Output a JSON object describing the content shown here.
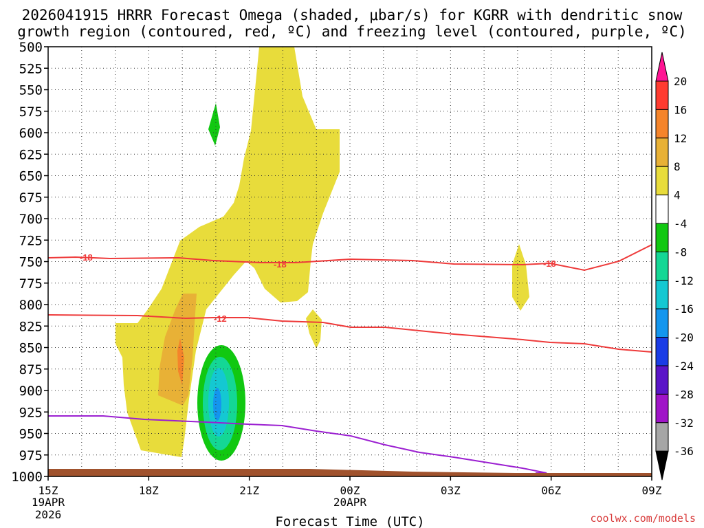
{
  "chart_data": {
    "type": "contour",
    "title_line1": "2026041915 HRRR Forecast Omega (shaded, μbar/s) for KGRR with dendritic snow",
    "title_line2": "growth region (contoured, red, ºC) and freezing level (contoured, purple, ºC)",
    "xlabel": "Forecast Time (UTC)",
    "x_ticks": [
      "15Z",
      "18Z",
      "21Z",
      "00Z",
      "03Z",
      "06Z",
      "09Z"
    ],
    "x_tick_hours": [
      0,
      3,
      6,
      9,
      12,
      15,
      18
    ],
    "x_date_labels": [
      {
        "hour": 0,
        "lines": [
          "19APR",
          "2026"
        ]
      },
      {
        "hour": 9,
        "lines": [
          "20APR"
        ]
      }
    ],
    "y_ticks": [
      500,
      525,
      550,
      575,
      600,
      625,
      650,
      675,
      700,
      725,
      750,
      775,
      800,
      825,
      850,
      875,
      900,
      925,
      950,
      975,
      1000
    ],
    "ylim": [
      500,
      1000
    ],
    "xlim": [
      0,
      18
    ],
    "colorbar": {
      "levels": [
        "20",
        "16",
        "12",
        "8",
        "4",
        "-4",
        "-8",
        "-12",
        "-16",
        "-20",
        "-24",
        "-28",
        "-32",
        "-36"
      ],
      "colors": [
        "#ff1493",
        "#ff3b30",
        "#f5842a",
        "#e8b136",
        "#e8dc3b",
        "#ffffff",
        "#11c811",
        "#14d795",
        "#14c8d2",
        "#1496ee",
        "#1a3ce6",
        "#5a14c8",
        "#a014c8",
        "#a6a6a6",
        "#000000"
      ]
    },
    "contour_labels": [
      {
        "text": "-18",
        "color": "#ee3a3a"
      },
      {
        "text": "-18",
        "color": "#ee3a3a"
      },
      {
        "text": "-18",
        "color": "#ee3a3a"
      },
      {
        "text": "-12",
        "color": "#ee3a3a"
      }
    ],
    "credit": "coolwx.com/models"
  }
}
